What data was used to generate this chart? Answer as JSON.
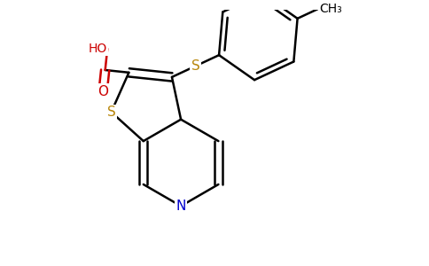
{
  "background_color": "#ffffff",
  "atom_colors": {
    "C": "#000000",
    "S": "#b8860b",
    "N": "#0000cd",
    "O": "#cc0000",
    "H": "#000000"
  },
  "bond_color": "#000000",
  "bond_width": 1.8,
  "dbo": 0.055,
  "figsize": [
    4.84,
    3.0
  ],
  "dpi": 100
}
